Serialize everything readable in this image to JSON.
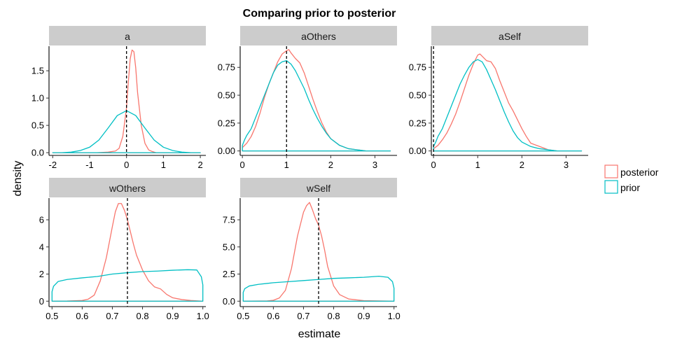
{
  "title": "Comparing prior to posterior",
  "xlabel": "estimate",
  "ylabel": "density",
  "legend": {
    "placement": "right",
    "items": [
      {
        "label": "posterior",
        "color": "#F8766D"
      },
      {
        "label": "prior",
        "color": "#00BFC4"
      }
    ]
  },
  "colors": {
    "posterior": "#F8766D",
    "prior": "#00BFC4",
    "strip": "#CCCCCC",
    "refline": "#000000"
  },
  "chart_data": [
    {
      "type": "line",
      "panel": "a",
      "xlim": [
        -2.1,
        2.15
      ],
      "ylim": [
        -0.05,
        1.95
      ],
      "xticks": [
        -2,
        -1,
        0,
        1,
        2
      ],
      "xtick_labels": [
        "-2",
        "-1",
        "0",
        "1",
        "2"
      ],
      "yticks": [
        0,
        0.5,
        1,
        1.5
      ],
      "ytick_labels": [
        "0.0",
        "0.5",
        "1.0",
        "1.5"
      ],
      "ref_x": 0,
      "series": [
        {
          "name": "posterior",
          "x": [
            -2.0,
            -0.8,
            -0.5,
            -0.3,
            -0.2,
            -0.1,
            0.0,
            0.05,
            0.1,
            0.15,
            0.2,
            0.25,
            0.3,
            0.4,
            0.5,
            0.6,
            0.7,
            0.8,
            1.0,
            2.0
          ],
          "y": [
            0,
            0,
            0.01,
            0.03,
            0.08,
            0.3,
            0.82,
            1.3,
            1.72,
            1.88,
            1.85,
            1.55,
            1.1,
            0.5,
            0.17,
            0.05,
            0.02,
            0,
            0,
            0
          ]
        },
        {
          "name": "prior",
          "x": [
            -2.0,
            -1.75,
            -1.5,
            -1.25,
            -1.0,
            -0.75,
            -0.5,
            -0.25,
            0.0,
            0.25,
            0.5,
            0.75,
            1.0,
            1.25,
            1.5,
            1.75,
            2.0
          ],
          "y": [
            0.0,
            0.0,
            0.01,
            0.04,
            0.1,
            0.23,
            0.45,
            0.68,
            0.77,
            0.68,
            0.45,
            0.23,
            0.1,
            0.04,
            0.01,
            0.0,
            0.0
          ]
        }
      ]
    },
    {
      "type": "line",
      "panel": "aOthers",
      "xlim": [
        -0.05,
        3.5
      ],
      "ylim": [
        -0.04,
        0.94
      ],
      "xticks": [
        0,
        1,
        2,
        3
      ],
      "xtick_labels": [
        "0",
        "1",
        "2",
        "3"
      ],
      "yticks": [
        0,
        0.25,
        0.5,
        0.75
      ],
      "ytick_labels": [
        "0.00",
        "0.25",
        "0.50",
        "0.75"
      ],
      "ref_x": 1,
      "series": [
        {
          "name": "posterior",
          "x": [
            0.0,
            0.1,
            0.2,
            0.3,
            0.4,
            0.5,
            0.6,
            0.7,
            0.8,
            0.9,
            1.0,
            1.05,
            1.1,
            1.2,
            1.3,
            1.4,
            1.5,
            1.6,
            1.7,
            1.8,
            1.9,
            2.0,
            2.2,
            2.4,
            2.6,
            2.8,
            3.0,
            3.35
          ],
          "y": [
            0.03,
            0.07,
            0.13,
            0.22,
            0.34,
            0.48,
            0.6,
            0.7,
            0.8,
            0.87,
            0.9,
            0.91,
            0.88,
            0.83,
            0.79,
            0.7,
            0.58,
            0.46,
            0.35,
            0.25,
            0.17,
            0.11,
            0.05,
            0.02,
            0.01,
            0.0,
            0.0,
            0.0
          ]
        },
        {
          "name": "prior",
          "x": [
            0.0,
            0.05,
            0.1,
            0.2,
            0.3,
            0.4,
            0.5,
            0.6,
            0.7,
            0.8,
            0.9,
            1.0,
            1.1,
            1.2,
            1.3,
            1.4,
            1.5,
            1.6,
            1.7,
            1.8,
            1.9,
            2.0,
            2.2,
            2.4,
            2.6,
            2.8,
            3.0,
            3.35
          ],
          "y": [
            0.05,
            0.1,
            0.14,
            0.2,
            0.3,
            0.4,
            0.5,
            0.6,
            0.7,
            0.77,
            0.8,
            0.81,
            0.78,
            0.72,
            0.64,
            0.56,
            0.46,
            0.37,
            0.29,
            0.22,
            0.16,
            0.11,
            0.05,
            0.02,
            0.01,
            0.0,
            0.0,
            0.0
          ]
        }
      ]
    },
    {
      "type": "line",
      "panel": "aSelf",
      "xlim": [
        -0.05,
        3.5
      ],
      "ylim": [
        -0.04,
        0.94
      ],
      "xticks": [
        0,
        1,
        2,
        3
      ],
      "xtick_labels": [
        "0",
        "1",
        "2",
        "3"
      ],
      "yticks": [
        0,
        0.25,
        0.5,
        0.75
      ],
      "ytick_labels": [
        "0.00",
        "0.25",
        "0.50",
        "0.75"
      ],
      "ref_x": 0,
      "series": [
        {
          "name": "posterior",
          "x": [
            0.0,
            0.1,
            0.2,
            0.3,
            0.4,
            0.5,
            0.6,
            0.7,
            0.8,
            0.9,
            1.0,
            1.05,
            1.1,
            1.2,
            1.3,
            1.4,
            1.5,
            1.6,
            1.7,
            1.8,
            1.9,
            2.0,
            2.1,
            2.2,
            2.4,
            2.6,
            2.8,
            3.0,
            3.35
          ],
          "y": [
            0.02,
            0.05,
            0.1,
            0.16,
            0.24,
            0.33,
            0.44,
            0.56,
            0.68,
            0.78,
            0.86,
            0.87,
            0.85,
            0.81,
            0.8,
            0.74,
            0.63,
            0.53,
            0.43,
            0.36,
            0.28,
            0.2,
            0.13,
            0.07,
            0.04,
            0.01,
            0.0,
            0.0,
            0.0
          ]
        },
        {
          "name": "prior",
          "x": [
            0.0,
            0.05,
            0.1,
            0.2,
            0.3,
            0.4,
            0.5,
            0.6,
            0.7,
            0.8,
            0.9,
            1.0,
            1.1,
            1.2,
            1.3,
            1.4,
            1.5,
            1.6,
            1.7,
            1.8,
            1.9,
            2.0,
            2.2,
            2.4,
            2.6,
            2.8,
            3.0,
            3.35
          ],
          "y": [
            0.04,
            0.08,
            0.13,
            0.2,
            0.3,
            0.4,
            0.5,
            0.6,
            0.68,
            0.75,
            0.8,
            0.82,
            0.8,
            0.73,
            0.64,
            0.55,
            0.45,
            0.35,
            0.26,
            0.18,
            0.12,
            0.08,
            0.04,
            0.02,
            0.01,
            0.0,
            0.0,
            0.0
          ]
        }
      ]
    },
    {
      "type": "line",
      "panel": "wOthers",
      "xlim": [
        0.49,
        1.01
      ],
      "ylim": [
        -0.4,
        7.6
      ],
      "xticks": [
        0.5,
        0.6,
        0.7,
        0.8,
        0.9,
        1.0
      ],
      "xtick_labels": [
        "0.5",
        "0.6",
        "0.7",
        "0.8",
        "0.9",
        "1.0"
      ],
      "yticks": [
        0,
        2,
        4,
        6
      ],
      "ytick_labels": [
        "0",
        "2",
        "4",
        "6"
      ],
      "ref_x": 0.75,
      "series": [
        {
          "name": "posterior",
          "x": [
            0.5,
            0.55,
            0.6,
            0.62,
            0.64,
            0.66,
            0.68,
            0.7,
            0.71,
            0.72,
            0.73,
            0.74,
            0.75,
            0.76,
            0.77,
            0.78,
            0.8,
            0.82,
            0.84,
            0.86,
            0.88,
            0.9,
            0.93,
            0.96,
            1.0
          ],
          "y": [
            0.0,
            0.01,
            0.05,
            0.15,
            0.45,
            1.5,
            3.2,
            5.5,
            6.6,
            7.2,
            7.2,
            6.7,
            6.0,
            5.1,
            4.2,
            3.4,
            2.3,
            1.5,
            1.05,
            0.9,
            0.5,
            0.25,
            0.12,
            0.05,
            0.0
          ]
        },
        {
          "name": "prior",
          "x": [
            0.5,
            0.5,
            0.505,
            0.52,
            0.55,
            0.6,
            0.65,
            0.7,
            0.75,
            0.8,
            0.85,
            0.9,
            0.95,
            0.98,
            0.995,
            1.0,
            1.0
          ],
          "y": [
            0.0,
            0.7,
            1.1,
            1.45,
            1.6,
            1.72,
            1.82,
            2.0,
            2.1,
            2.18,
            2.22,
            2.28,
            2.32,
            2.3,
            1.8,
            1.2,
            0.0
          ]
        }
      ]
    },
    {
      "type": "line",
      "panel": "wSelf",
      "xlim": [
        0.49,
        1.01
      ],
      "ylim": [
        -0.5,
        9.5
      ],
      "xticks": [
        0.5,
        0.6,
        0.7,
        0.8,
        0.9,
        1.0
      ],
      "xtick_labels": [
        "0.5",
        "0.6",
        "0.7",
        "0.8",
        "0.9",
        "1.0"
      ],
      "yticks": [
        0,
        2.5,
        5,
        7.5
      ],
      "ytick_labels": [
        "0.0",
        "2.5",
        "5.0",
        "7.5"
      ],
      "ref_x": 0.75,
      "series": [
        {
          "name": "posterior",
          "x": [
            0.5,
            0.58,
            0.6,
            0.62,
            0.64,
            0.66,
            0.68,
            0.7,
            0.71,
            0.72,
            0.73,
            0.74,
            0.75,
            0.76,
            0.77,
            0.78,
            0.8,
            0.82,
            0.85,
            0.9,
            1.0
          ],
          "y": [
            0.0,
            0.02,
            0.08,
            0.3,
            1.0,
            3.0,
            6.0,
            8.2,
            8.8,
            9.1,
            8.4,
            7.6,
            7.0,
            6.0,
            4.7,
            3.2,
            1.4,
            0.6,
            0.2,
            0.05,
            0.0
          ]
        },
        {
          "name": "prior",
          "x": [
            0.5,
            0.5,
            0.505,
            0.52,
            0.55,
            0.6,
            0.65,
            0.7,
            0.75,
            0.8,
            0.85,
            0.9,
            0.95,
            0.98,
            0.995,
            1.0,
            1.0
          ],
          "y": [
            0.0,
            0.8,
            1.15,
            1.4,
            1.55,
            1.7,
            1.8,
            1.9,
            2.0,
            2.1,
            2.15,
            2.2,
            2.3,
            2.2,
            1.8,
            1.2,
            0.0
          ]
        }
      ]
    }
  ]
}
